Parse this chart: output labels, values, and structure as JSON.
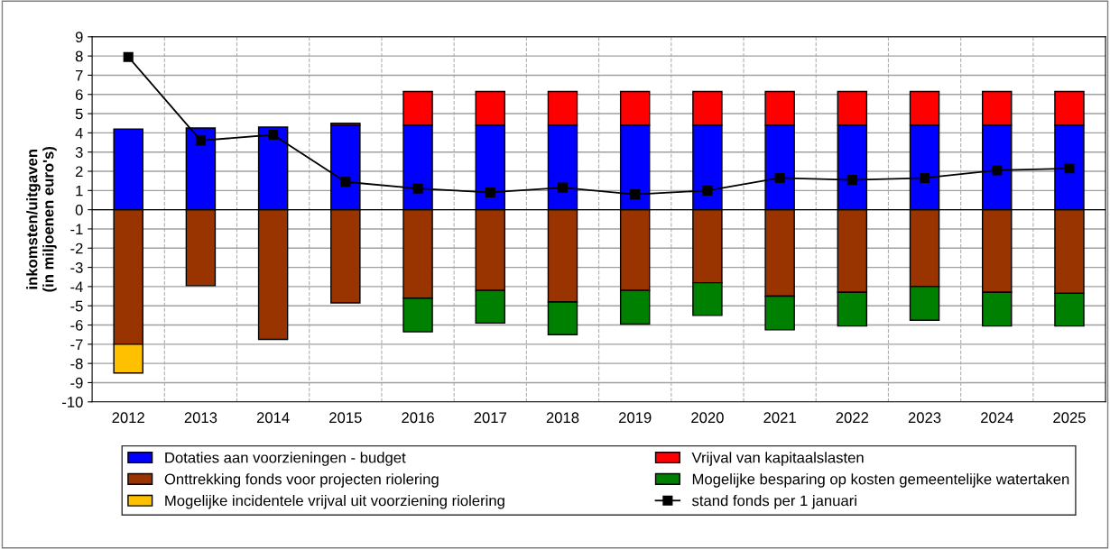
{
  "chart_data": {
    "type": "bar",
    "stacked": true,
    "ylabel": "inkomsten/uitgaven\n(in miljoenen euro's)",
    "categories": [
      "2012",
      "2013",
      "2014",
      "2015",
      "2016",
      "2017",
      "2018",
      "2019",
      "2020",
      "2021",
      "2022",
      "2023",
      "2024",
      "2025"
    ],
    "series": [
      {
        "name": "Dotaties aan voorzieningen - budget",
        "color": "#0000ff",
        "values": [
          4.2,
          4.25,
          4.3,
          4.4,
          4.4,
          4.4,
          4.4,
          4.4,
          4.4,
          4.4,
          4.4,
          4.4,
          4.4,
          4.4
        ]
      },
      {
        "name": "Vrijval van kapitaalslasten",
        "color": "#ff0000",
        "values": [
          null,
          null,
          null,
          0.1,
          1.75,
          1.75,
          1.75,
          1.75,
          1.75,
          1.75,
          1.75,
          1.75,
          1.75,
          1.75
        ]
      },
      {
        "name": "Onttrekking fonds voor projecten riolering",
        "color": "#993300",
        "values": [
          -7.0,
          -3.95,
          -6.75,
          -4.85,
          -4.6,
          -4.2,
          -4.8,
          -4.2,
          -3.8,
          -4.5,
          -4.3,
          -4.0,
          -4.3,
          -4.35
        ]
      },
      {
        "name": "Mogelijke besparing op kosten gemeentelijke watertaken",
        "color": "#008000",
        "values": [
          null,
          null,
          null,
          null,
          -1.75,
          -1.7,
          -1.7,
          -1.75,
          -1.7,
          -1.75,
          -1.75,
          -1.75,
          -1.75,
          -1.7
        ]
      },
      {
        "name": "Mogelijke incidentele vrijval uit voorziening riolering",
        "color": "#ffc000",
        "values": [
          -1.5,
          null,
          null,
          null,
          null,
          null,
          null,
          null,
          null,
          null,
          null,
          null,
          null,
          null
        ]
      },
      {
        "name": "stand fonds per 1 januari",
        "type": "line",
        "color": "#000000",
        "values": [
          7.95,
          3.6,
          3.9,
          1.45,
          1.1,
          0.9,
          1.15,
          0.8,
          1.0,
          1.65,
          1.55,
          1.65,
          2.05,
          2.15
        ]
      }
    ],
    "ylim": [
      -10,
      9
    ],
    "yticks": [
      -10,
      -9,
      -8,
      -7,
      -6,
      -5,
      -4,
      -3,
      -2,
      -1,
      0,
      1,
      2,
      3,
      4,
      5,
      6,
      7,
      8,
      9
    ],
    "grid": true,
    "legend": "bottom",
    "marker": "square",
    "line_style": "solid"
  }
}
